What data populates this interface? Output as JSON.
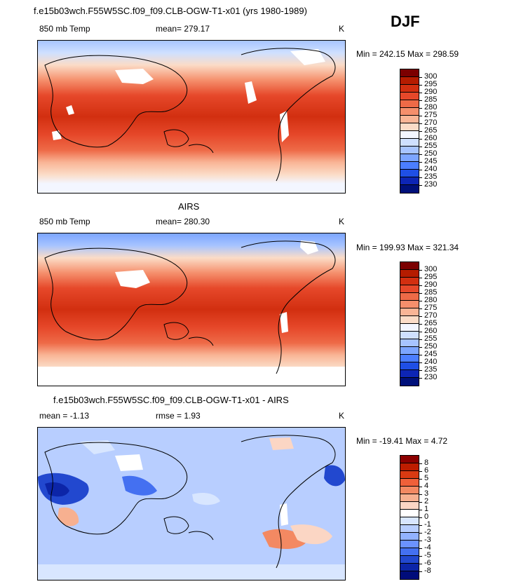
{
  "season": "DJF",
  "panels": [
    {
      "title": "f.e15b03wch.F55W5SC.f09_f09.CLB-OGW-T1-x01 (yrs 1980-1989)",
      "left_label": "850 mb Temp",
      "center_label": "mean= 279.17",
      "right_label": "K",
      "minmax": "Min = 242.15 Max = 298.59",
      "colorbar_ticks": [
        "300",
        "295",
        "290",
        "285",
        "280",
        "275",
        "270",
        "265",
        "260",
        "255",
        "250",
        "245",
        "240",
        "235",
        "230"
      ]
    },
    {
      "title": "AIRS",
      "left_label": "850 mb Temp",
      "center_label": "mean= 280.30",
      "right_label": "K",
      "minmax": "Min = 199.93 Max = 321.34",
      "colorbar_ticks": [
        "300",
        "295",
        "290",
        "285",
        "280",
        "275",
        "270",
        "265",
        "260",
        "255",
        "250",
        "245",
        "240",
        "235",
        "230"
      ]
    },
    {
      "title": "f.e15b03wch.F55W5SC.f09_f09.CLB-OGW-T1-x01 - AIRS",
      "left_label": "mean =   -1.13",
      "center_label": "rmse =    1.93",
      "right_label": "K",
      "minmax": "Min = -19.41 Max =    4.72",
      "colorbar_ticks": [
        "8",
        "6",
        "5",
        "4",
        "3",
        "2",
        "1",
        "0",
        "-1",
        "-2",
        "-3",
        "-4",
        "-5",
        "-6",
        "-8"
      ]
    }
  ],
  "colors": {
    "abs_scale": [
      "#7b0000",
      "#b51c00",
      "#d22f10",
      "#e6482a",
      "#ee6a47",
      "#f58f6c",
      "#f9b596",
      "#fbdcc7",
      "#f3f6ff",
      "#cfe0ff",
      "#a7c4ff",
      "#7ca5ff",
      "#4b7eff",
      "#1f4fe5",
      "#0d25b5",
      "#00107a"
    ],
    "diff_scale": [
      "#8c0000",
      "#bd1d00",
      "#d93a12",
      "#ef6039",
      "#f38962",
      "#f7b090",
      "#fbd6c4",
      "#ffffff",
      "#d8e6ff",
      "#b8ceff",
      "#92b2ff",
      "#6b92ff",
      "#4470f1",
      "#2248cf",
      "#0c25a8",
      "#000c7a"
    ],
    "land_mask": "#ffffff",
    "coast_line": "#000000"
  }
}
